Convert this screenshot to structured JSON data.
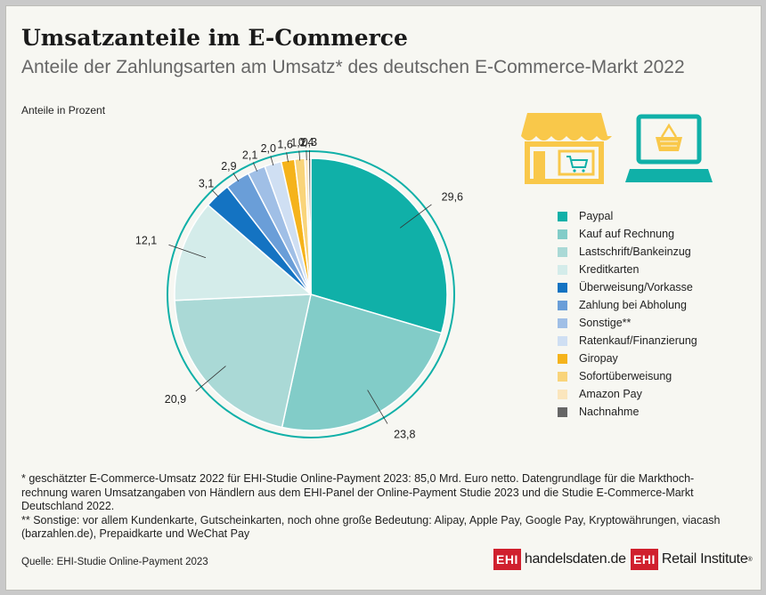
{
  "header": {
    "title": "Umsatzanteile im E-Commerce",
    "subtitle": "Anteile der Zahlungsarten am Umsatz* des deutschen E-Commerce-Markt 2022",
    "unit_label": "Anteile in Prozent"
  },
  "chart_data": {
    "type": "pie",
    "title": "Umsatzanteile im E-Commerce",
    "subtitle": "Anteile der Zahlungsarten am Umsatz* des deutschen E-Commerce-Markt 2022",
    "unit": "Anteile in Prozent",
    "legend_position": "right",
    "slices": [
      {
        "name": "Paypal",
        "value": 29.6,
        "label": "29,6",
        "color": "#10b0a8"
      },
      {
        "name": "Kauf auf Rechnung",
        "value": 23.8,
        "label": "23,8",
        "color": "#82ccc8"
      },
      {
        "name": "Lastschrift/Bankeinzug",
        "value": 20.9,
        "label": "20,9",
        "color": "#aad9d6"
      },
      {
        "name": "Kreditkarten",
        "value": 12.1,
        "label": "12,1",
        "color": "#d4ecea"
      },
      {
        "name": "Überweisung/Vorkasse",
        "value": 3.1,
        "label": "3,1",
        "color": "#1473c2"
      },
      {
        "name": "Zahlung bei Abholung",
        "value": 2.9,
        "label": "2,9",
        "color": "#6a9ed8"
      },
      {
        "name": "Sonstige**",
        "value": 2.1,
        "label": "2,1",
        "color": "#a0bfe6"
      },
      {
        "name": "Ratenkauf/Finanzierung",
        "value": 2.0,
        "label": "2,0",
        "color": "#cfdff3"
      },
      {
        "name": "Giropay",
        "value": 1.6,
        "label": "1,6",
        "color": "#f5b31b"
      },
      {
        "name": "Sofortüberweisung",
        "value": 1.2,
        "label": "1,2",
        "color": "#f9d47a"
      },
      {
        "name": "Amazon Pay",
        "value": 0.4,
        "label": "0,4",
        "color": "#fbe6bd"
      },
      {
        "name": "Nachnahme",
        "value": 0.3,
        "label": "0,3",
        "color": "#666666"
      }
    ]
  },
  "icons": {
    "shop": "storefront-cart-icon",
    "laptop": "laptop-basket-icon",
    "accent_yellow": "#f9c84a",
    "accent_teal": "#10b0a8"
  },
  "footnotes": {
    "note1": "* geschätzter E-Commerce-Umsatz 2022 für EHI-Studie Online-Payment 2023: 85,0 Mrd. Euro netto. Datengrundlage für die Markthoch-rechnung waren Umsatzangaben von Händlern aus dem EHI-Panel der Online-Payment Studie 2023 und die Studie E-Commerce-Markt Deutschland 2022.",
    "note2": "** Sonstige: vor allem Kundenkarte, Gutscheinkarten, noch ohne große Bedeutung: Alipay, Apple Pay, Google Pay, Kryptowährungen, viacash (barzahlen.de), Prepaidkarte und WeChat Pay"
  },
  "source": "Quelle: EHI-Studie Online-Payment 2023",
  "logos": {
    "ehi_box": "EHI",
    "handelsdaten": "handelsdaten.de",
    "retail_institute": "Retail Institute",
    "registered": "®",
    "brand_color": "#d0202e"
  }
}
